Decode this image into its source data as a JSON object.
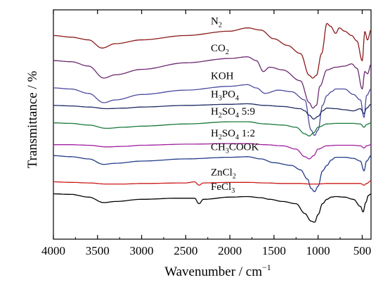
{
  "chart_data": {
    "type": "line",
    "title": "",
    "xlabel": "Wavenumber / cm",
    "xlabel_superscript": "−1",
    "ylabel": "Transmittance / %",
    "xlim": [
      4000,
      400
    ],
    "x_reversed": true,
    "xticks": [
      4000,
      3500,
      3000,
      2500,
      2000,
      1500,
      1000,
      500
    ],
    "xtick_labels": [
      "4000",
      "3500",
      "3000",
      "2500",
      "2000",
      "1500",
      "1000",
      "500"
    ],
    "y_ticks_shown": false,
    "grid": false,
    "legend": "inline labels",
    "series": [
      {
        "name": "N2",
        "label_main": "N",
        "label_sub": "2",
        "label_rest": "",
        "color": "#8b1a1a",
        "points": [
          [
            4000,
            1.28
          ],
          [
            3800,
            1.25
          ],
          [
            3600,
            1.2
          ],
          [
            3450,
            1.05
          ],
          [
            3300,
            1.13
          ],
          [
            3000,
            1.2
          ],
          [
            2500,
            1.28
          ],
          [
            2000,
            1.36
          ],
          [
            1800,
            1.42
          ],
          [
            1650,
            1.38
          ],
          [
            1500,
            1.22
          ],
          [
            1350,
            1.1
          ],
          [
            1200,
            0.95
          ],
          [
            1100,
            0.55
          ],
          [
            1060,
            0.5
          ],
          [
            1020,
            0.55
          ],
          [
            960,
            0.95
          ],
          [
            900,
            1.5
          ],
          [
            860,
            1.45
          ],
          [
            800,
            1.32
          ],
          [
            760,
            1.42
          ],
          [
            700,
            1.36
          ],
          [
            620,
            1.28
          ],
          [
            560,
            1.18
          ],
          [
            500,
            0.82
          ],
          [
            470,
            1.35
          ],
          [
            440,
            1.2
          ],
          [
            400,
            1.38
          ]
        ]
      },
      {
        "name": "CO2",
        "label_main": "CO",
        "label_sub": "2",
        "label_rest": "",
        "color": "#6b2a70",
        "points": [
          [
            4000,
            0.82
          ],
          [
            3800,
            0.8
          ],
          [
            3600,
            0.72
          ],
          [
            3430,
            0.5
          ],
          [
            3300,
            0.56
          ],
          [
            3000,
            0.66
          ],
          [
            2500,
            0.78
          ],
          [
            2000,
            0.86
          ],
          [
            1800,
            0.89
          ],
          [
            1700,
            0.82
          ],
          [
            1620,
            0.62
          ],
          [
            1550,
            0.7
          ],
          [
            1400,
            0.65
          ],
          [
            1200,
            0.45
          ],
          [
            1100,
            0.05
          ],
          [
            1060,
            -0.05
          ],
          [
            1020,
            0.0
          ],
          [
            980,
            0.35
          ],
          [
            900,
            0.65
          ],
          [
            800,
            0.7
          ],
          [
            700,
            0.72
          ],
          [
            620,
            0.76
          ],
          [
            560,
            0.68
          ],
          [
            500,
            0.3
          ],
          [
            470,
            0.62
          ],
          [
            440,
            0.58
          ],
          [
            400,
            0.75
          ]
        ]
      },
      {
        "name": "KOH",
        "label_main": "KOH",
        "label_sub": "",
        "label_rest": "",
        "color": "#4b4ba0",
        "points": [
          [
            4000,
            0.32
          ],
          [
            3800,
            0.3
          ],
          [
            3600,
            0.22
          ],
          [
            3430,
            0.05
          ],
          [
            3300,
            0.1
          ],
          [
            3000,
            0.2
          ],
          [
            2500,
            0.28
          ],
          [
            2000,
            0.35
          ],
          [
            1800,
            0.38
          ],
          [
            1700,
            0.32
          ],
          [
            1600,
            0.22
          ],
          [
            1450,
            0.28
          ],
          [
            1300,
            0.25
          ],
          [
            1150,
            0.1
          ],
          [
            1080,
            -0.45
          ],
          [
            1040,
            -0.55
          ],
          [
            1000,
            -0.45
          ],
          [
            950,
            0.0
          ],
          [
            900,
            0.18
          ],
          [
            850,
            0.25
          ],
          [
            800,
            0.3
          ],
          [
            700,
            0.3
          ],
          [
            600,
            0.2
          ],
          [
            520,
            0.1
          ],
          [
            480,
            -0.22
          ],
          [
            450,
            0.18
          ],
          [
            400,
            0.3
          ]
        ]
      },
      {
        "name": "H3PO4",
        "label_main": "H",
        "label_sub": "3",
        "label_rest": "PO",
        "label_sub2": "4",
        "color": "#1e2a66",
        "points": [
          [
            4000,
            0.0
          ],
          [
            3800,
            -0.01
          ],
          [
            3600,
            -0.03
          ],
          [
            3400,
            -0.06
          ],
          [
            3200,
            -0.05
          ],
          [
            3000,
            -0.03
          ],
          [
            2500,
            0.0
          ],
          [
            2000,
            0.02
          ],
          [
            1800,
            0.03
          ],
          [
            1600,
            0.0
          ],
          [
            1400,
            -0.02
          ],
          [
            1200,
            -0.06
          ],
          [
            1150,
            -0.1
          ],
          [
            1100,
            -0.18
          ],
          [
            1050,
            -0.25
          ],
          [
            1000,
            -0.2
          ],
          [
            950,
            -0.1
          ],
          [
            900,
            -0.05
          ],
          [
            800,
            -0.06
          ],
          [
            700,
            -0.08
          ],
          [
            600,
            -0.1
          ],
          [
            520,
            -0.06
          ],
          [
            480,
            -0.15
          ],
          [
            450,
            -0.05
          ],
          [
            400,
            0.02
          ]
        ]
      },
      {
        "name": "H2SO4 5:9",
        "label_main": "H",
        "label_sub": "2",
        "label_rest": "SO",
        "label_sub2": "4",
        "label_tail": " 5:9",
        "color": "#1a7a3a",
        "points": [
          [
            4000,
            -0.32
          ],
          [
            3800,
            -0.33
          ],
          [
            3600,
            -0.36
          ],
          [
            3400,
            -0.42
          ],
          [
            3200,
            -0.4
          ],
          [
            3000,
            -0.38
          ],
          [
            2500,
            -0.34
          ],
          [
            2000,
            -0.3
          ],
          [
            1800,
            -0.3
          ],
          [
            1600,
            -0.34
          ],
          [
            1400,
            -0.36
          ],
          [
            1250,
            -0.4
          ],
          [
            1150,
            -0.52
          ],
          [
            1100,
            -0.56
          ],
          [
            1050,
            -0.5
          ],
          [
            1000,
            -0.4
          ],
          [
            900,
            -0.34
          ],
          [
            800,
            -0.33
          ],
          [
            700,
            -0.33
          ],
          [
            600,
            -0.33
          ],
          [
            520,
            -0.34
          ],
          [
            480,
            -0.4
          ],
          [
            450,
            -0.35
          ],
          [
            400,
            -0.32
          ]
        ]
      },
      {
        "name": "H2SO4 1:2",
        "label_main": "H",
        "label_sub": "2",
        "label_rest": "SO",
        "label_sub2": "4",
        "label_tail": " 1:2",
        "color": "#a020a0",
        "points": [
          [
            4000,
            -0.72
          ],
          [
            3800,
            -0.72
          ],
          [
            3600,
            -0.73
          ],
          [
            3400,
            -0.76
          ],
          [
            3200,
            -0.75
          ],
          [
            3000,
            -0.73
          ],
          [
            2500,
            -0.71
          ],
          [
            2000,
            -0.7
          ],
          [
            1800,
            -0.7
          ],
          [
            1600,
            -0.72
          ],
          [
            1400,
            -0.74
          ],
          [
            1250,
            -0.8
          ],
          [
            1150,
            -0.94
          ],
          [
            1100,
            -0.98
          ],
          [
            1050,
            -0.92
          ],
          [
            1000,
            -0.8
          ],
          [
            900,
            -0.74
          ],
          [
            800,
            -0.73
          ],
          [
            700,
            -0.73
          ],
          [
            600,
            -0.73
          ],
          [
            520,
            -0.74
          ],
          [
            480,
            -0.78
          ],
          [
            450,
            -0.74
          ],
          [
            400,
            -0.72
          ]
        ]
      },
      {
        "name": "CH3COOK",
        "label_main": "CH",
        "label_sub": "3",
        "label_rest": "COOK",
        "color": "#223a8a",
        "points": [
          [
            4000,
            -0.92
          ],
          [
            3800,
            -0.94
          ],
          [
            3600,
            -0.98
          ],
          [
            3430,
            -1.08
          ],
          [
            3300,
            -1.06
          ],
          [
            3000,
            -1.02
          ],
          [
            2500,
            -0.98
          ],
          [
            2000,
            -0.95
          ],
          [
            1800,
            -0.94
          ],
          [
            1650,
            -0.98
          ],
          [
            1500,
            -1.05
          ],
          [
            1300,
            -1.1
          ],
          [
            1200,
            -1.18
          ],
          [
            1120,
            -1.35
          ],
          [
            1080,
            -1.52
          ],
          [
            1040,
            -1.58
          ],
          [
            1000,
            -1.48
          ],
          [
            950,
            -1.2
          ],
          [
            900,
            -1.1
          ],
          [
            850,
            -1.0
          ],
          [
            800,
            -0.95
          ],
          [
            700,
            -0.95
          ],
          [
            600,
            -0.97
          ],
          [
            520,
            -1.02
          ],
          [
            480,
            -1.2
          ],
          [
            450,
            -1.02
          ],
          [
            400,
            -0.92
          ]
        ]
      },
      {
        "name": "ZnCl2",
        "label_main": "ZnCl",
        "label_sub": "2",
        "label_rest": "",
        "color": "#cc1a1a",
        "points": [
          [
            4000,
            -1.4
          ],
          [
            3800,
            -1.41
          ],
          [
            3600,
            -1.42
          ],
          [
            3400,
            -1.44
          ],
          [
            3200,
            -1.44
          ],
          [
            3000,
            -1.43
          ],
          [
            2500,
            -1.42
          ],
          [
            2400,
            -1.4
          ],
          [
            2350,
            -1.46
          ],
          [
            2300,
            -1.42
          ],
          [
            2000,
            -1.41
          ],
          [
            1800,
            -1.41
          ],
          [
            1600,
            -1.42
          ],
          [
            1400,
            -1.43
          ],
          [
            1200,
            -1.43
          ],
          [
            1100,
            -1.44
          ],
          [
            1000,
            -1.44
          ],
          [
            900,
            -1.43
          ],
          [
            800,
            -1.43
          ],
          [
            700,
            -1.43
          ],
          [
            600,
            -1.43
          ],
          [
            520,
            -1.43
          ],
          [
            480,
            -1.46
          ],
          [
            450,
            -1.43
          ],
          [
            400,
            -1.38
          ]
        ]
      },
      {
        "name": "FeCl3",
        "label_main": "FeCl",
        "label_sub": "3",
        "label_rest": "",
        "color": "#000000",
        "points": [
          [
            4000,
            -1.62
          ],
          [
            3800,
            -1.63
          ],
          [
            3600,
            -1.68
          ],
          [
            3430,
            -1.78
          ],
          [
            3300,
            -1.76
          ],
          [
            3000,
            -1.72
          ],
          [
            2600,
            -1.7
          ],
          [
            2400,
            -1.7
          ],
          [
            2350,
            -1.8
          ],
          [
            2300,
            -1.72
          ],
          [
            2000,
            -1.68
          ],
          [
            1800,
            -1.67
          ],
          [
            1650,
            -1.69
          ],
          [
            1550,
            -1.72
          ],
          [
            1400,
            -1.76
          ],
          [
            1250,
            -1.8
          ],
          [
            1150,
            -1.98
          ],
          [
            1080,
            -2.12
          ],
          [
            1040,
            -2.14
          ],
          [
            1000,
            -2.0
          ],
          [
            950,
            -1.8
          ],
          [
            900,
            -1.72
          ],
          [
            850,
            -1.68
          ],
          [
            800,
            -1.67
          ],
          [
            700,
            -1.68
          ],
          [
            600,
            -1.72
          ],
          [
            520,
            -1.85
          ],
          [
            490,
            -1.95
          ],
          [
            460,
            -1.78
          ],
          [
            430,
            -1.65
          ],
          [
            400,
            -1.62
          ]
        ]
      }
    ]
  }
}
